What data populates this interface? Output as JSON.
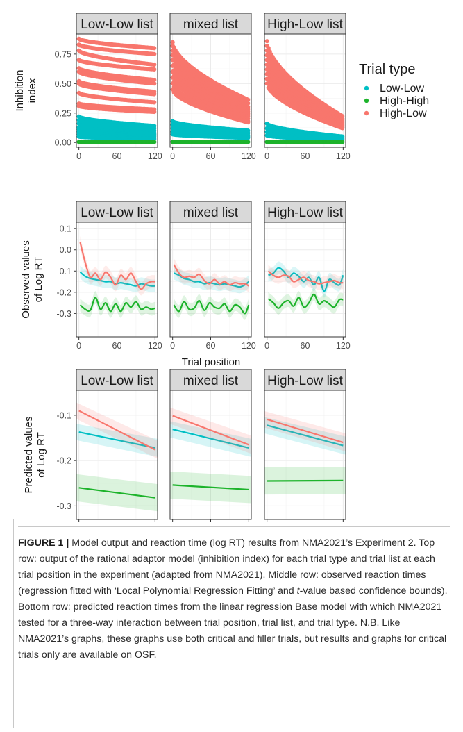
{
  "chart_data": [
    {
      "type": "scatter",
      "row": "top",
      "ylabel": "Inhibition index",
      "ylim": [
        -0.04,
        0.92
      ],
      "yticks": [
        0.0,
        0.25,
        0.5,
        0.75
      ],
      "ytick_labels": [
        "0.00",
        "0.25",
        "0.50",
        "0.75"
      ],
      "xlim": [
        -4,
        124
      ],
      "xticks": [
        0,
        60,
        120
      ],
      "xtick_labels": [
        "0",
        "60",
        "120"
      ],
      "panels": [
        "Low-Low list",
        "mixed list",
        "High-Low list"
      ],
      "series": [
        {
          "name": "Low-Low",
          "color": "#00BFC4"
        },
        {
          "name": "High-High",
          "color": "#1DB32B"
        },
        {
          "name": "High-Low",
          "color": "#F8766D"
        }
      ],
      "bands": {
        "Low-Low list": {
          "High-Low": [
            [
              0.88,
              0.8
            ],
            [
              0.83,
              0.75
            ],
            [
              0.78,
              0.66
            ],
            [
              0.7,
              0.62
            ],
            [
              0.63,
              0.53
            ],
            [
              0.6,
              0.5
            ],
            [
              0.52,
              0.43
            ],
            [
              0.5,
              0.41
            ],
            [
              0.42,
              0.34
            ],
            [
              0.33,
              0.28
            ],
            [
              0.31,
              0.26
            ]
          ],
          "Low-Low": [
            [
              0.22,
              0.14
            ],
            [
              0.19,
              0.12
            ],
            [
              0.16,
              0.1
            ],
            [
              0.13,
              0.08
            ],
            [
              0.11,
              0.07
            ],
            [
              0.09,
              0.06
            ],
            [
              0.07,
              0.05
            ],
            [
              0.05,
              0.03
            ]
          ],
          "High-High": [
            [
              0.005,
              0.005
            ]
          ]
        },
        "mixed list": {
          "High-Low": [
            [
              0.85,
              0.36
            ],
            [
              0.82,
              0.33
            ],
            [
              0.78,
              0.3
            ],
            [
              0.74,
              0.28
            ],
            [
              0.7,
              0.26
            ],
            [
              0.65,
              0.24
            ],
            [
              0.6,
              0.22
            ],
            [
              0.55,
              0.2
            ],
            [
              0.5,
              0.18
            ],
            [
              0.45,
              0.17
            ]
          ],
          "Low-Low": [
            [
              0.18,
              0.1
            ],
            [
              0.15,
              0.08
            ],
            [
              0.12,
              0.06
            ],
            [
              0.09,
              0.05
            ],
            [
              0.07,
              0.04
            ]
          ],
          "High-High": [
            [
              0.005,
              0.005
            ]
          ]
        },
        "High-Low list": {
          "High-Low": [
            [
              0.86,
              0.22
            ],
            [
              0.82,
              0.2
            ],
            [
              0.78,
              0.19
            ],
            [
              0.74,
              0.18
            ],
            [
              0.7,
              0.17
            ],
            [
              0.66,
              0.16
            ],
            [
              0.62,
              0.15
            ],
            [
              0.58,
              0.14
            ],
            [
              0.54,
              0.13
            ],
            [
              0.5,
              0.12
            ]
          ],
          "Low-Low": [
            [
              0.16,
              0.05
            ],
            [
              0.12,
              0.04
            ],
            [
              0.09,
              0.03
            ],
            [
              0.06,
              0.02
            ]
          ],
          "High-High": [
            [
              0.005,
              0.005
            ]
          ]
        }
      }
    },
    {
      "type": "line",
      "row": "middle",
      "ylabel": "Observed values of Log RT",
      "xlabel": "Trial position",
      "ylim": [
        -0.41,
        0.13
      ],
      "yticks": [
        -0.3,
        -0.2,
        -0.1,
        0.0,
        0.1
      ],
      "ytick_labels": [
        "-0.3",
        "-0.2",
        "-0.1",
        "0.0",
        "0.1"
      ],
      "xlim": [
        -4,
        124
      ],
      "xticks": [
        0,
        60,
        120
      ],
      "xtick_labels": [
        "0",
        "60",
        "120"
      ],
      "panels": [
        "Low-Low list",
        "mixed list",
        "High-Low list"
      ],
      "x": [
        2,
        10,
        18,
        26,
        34,
        42,
        50,
        58,
        66,
        74,
        82,
        90,
        98,
        106,
        114,
        120
      ],
      "series": {
        "Low-Low list": {
          "Low-Low": [
            -0.105,
            -0.125,
            -0.135,
            -0.14,
            -0.145,
            -0.15,
            -0.15,
            -0.16,
            -0.155,
            -0.16,
            -0.165,
            -0.17,
            -0.16,
            -0.165,
            -0.17,
            -0.17
          ],
          "High-High": [
            -0.26,
            -0.28,
            -0.285,
            -0.225,
            -0.28,
            -0.25,
            -0.29,
            -0.255,
            -0.29,
            -0.25,
            -0.27,
            -0.245,
            -0.28,
            -0.27,
            -0.28,
            -0.275
          ],
          "High-Low": [
            0.035,
            -0.06,
            -0.13,
            -0.11,
            -0.14,
            -0.105,
            -0.13,
            -0.165,
            -0.12,
            -0.14,
            -0.11,
            -0.15,
            -0.185,
            -0.16,
            -0.15,
            -0.15
          ]
        },
        "mixed list": {
          "Low-Low": [
            -0.11,
            -0.12,
            -0.135,
            -0.14,
            -0.15,
            -0.15,
            -0.16,
            -0.155,
            -0.16,
            -0.165,
            -0.16,
            -0.165,
            -0.17,
            -0.175,
            -0.165,
            -0.15
          ],
          "High-High": [
            -0.26,
            -0.29,
            -0.245,
            -0.28,
            -0.275,
            -0.24,
            -0.285,
            -0.25,
            -0.27,
            -0.275,
            -0.255,
            -0.29,
            -0.26,
            -0.27,
            -0.3,
            -0.26
          ],
          "High-Low": [
            -0.07,
            -0.11,
            -0.13,
            -0.125,
            -0.13,
            -0.115,
            -0.145,
            -0.16,
            -0.14,
            -0.16,
            -0.15,
            -0.165,
            -0.155,
            -0.16,
            -0.16,
            -0.17
          ]
        },
        "High-Low list": {
          "Low-Low": [
            -0.12,
            -0.11,
            -0.085,
            -0.1,
            -0.13,
            -0.11,
            -0.125,
            -0.15,
            -0.13,
            -0.165,
            -0.13,
            -0.195,
            -0.14,
            -0.155,
            -0.165,
            -0.12
          ],
          "High-High": [
            -0.23,
            -0.25,
            -0.275,
            -0.25,
            -0.24,
            -0.265,
            -0.225,
            -0.27,
            -0.25,
            -0.21,
            -0.255,
            -0.24,
            -0.255,
            -0.27,
            -0.235,
            -0.235
          ],
          "High-Low": [
            -0.1,
            -0.12,
            -0.13,
            -0.12,
            -0.125,
            -0.15,
            -0.14,
            -0.13,
            -0.145,
            -0.15,
            -0.16,
            -0.155,
            -0.15,
            -0.145,
            -0.155,
            -0.155
          ]
        }
      }
    },
    {
      "type": "line",
      "row": "bottom",
      "ylabel": "Predicted values of Log RT",
      "ylim": [
        -0.33,
        -0.045
      ],
      "yticks": [
        -0.3,
        -0.2,
        -0.1
      ],
      "ytick_labels": [
        "-0.3",
        "-0.2",
        "-0.1"
      ],
      "xlim": [
        -4,
        124
      ],
      "xticks": [
        0,
        60,
        120
      ],
      "xtick_labels": [
        "0",
        "60",
        "120"
      ],
      "panels": [
        "Low-Low list",
        "mixed list",
        "High-Low list"
      ],
      "lines": {
        "Low-Low list": {
          "Low-Low": [
            -0.137,
            -0.172
          ],
          "High-High": [
            -0.26,
            -0.282
          ],
          "High-Low": [
            -0.09,
            -0.176
          ]
        },
        "mixed list": {
          "Low-Low": [
            -0.131,
            -0.172
          ],
          "High-High": [
            -0.254,
            -0.264
          ],
          "High-Low": [
            -0.101,
            -0.165
          ]
        },
        "High-Low list": {
          "Low-Low": [
            -0.122,
            -0.167
          ],
          "High-High": [
            -0.245,
            -0.244
          ],
          "High-Low": [
            -0.109,
            -0.16
          ]
        }
      }
    }
  ],
  "legend": {
    "title": "Trial type",
    "items": [
      {
        "label": "Low-Low",
        "color": "#00BFC4"
      },
      {
        "label": "High-High",
        "color": "#1DB32B"
      },
      {
        "label": "High-Low",
        "color": "#F8766D"
      }
    ]
  },
  "caption": {
    "label": "FIGURE 1 |",
    "text_1": " Model output and reaction time (log RT) results from NMA2021’s Experiment 2. Top row: output of the rational adaptor model (inhibition index) for each trial type and trial list at each trial position in the experiment (adapted from NMA2021). Middle row: observed reaction times (regression fitted with ‘Local Polynomial Regression Fitting’ and ",
    "italic": "t",
    "text_2": "-value based confidence bounds). Bottom row: predicted reaction times from the linear regression Base model with which NMA2021 tested for a three-way interaction between trial position, trial list, and trial type. N.B. Like NMA2021’s graphs, these graphs use both critical and filler trials, but results and graphs for critical trials only are available on OSF."
  }
}
